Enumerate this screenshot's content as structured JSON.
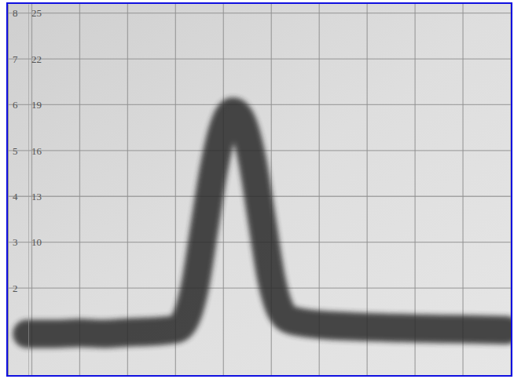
{
  "chart_data": {
    "type": "line",
    "x": [
      -0.1,
      0.5,
      1,
      1.5,
      2,
      2.5,
      3,
      3.2,
      3.4,
      3.6,
      3.8,
      4.0,
      4.2,
      4.4,
      4.6,
      4.8,
      5.0,
      5.2,
      5.4,
      6,
      7,
      8,
      9,
      9.9
    ],
    "values": [
      1.0,
      1.0,
      1.02,
      1.0,
      1.03,
      1.05,
      1.1,
      1.3,
      2.0,
      3.3,
      4.6,
      5.5,
      5.85,
      5.6,
      4.8,
      3.5,
      2.2,
      1.5,
      1.3,
      1.2,
      1.15,
      1.12,
      1.1,
      1.08
    ],
    "color": "#2b2b2b",
    "xlim": [
      -0.5,
      10
    ],
    "xticks": [
      0,
      1,
      2,
      3,
      4,
      5,
      6,
      7,
      8,
      9,
      10
    ],
    "ylim": [
      0.1,
      8.2
    ],
    "yticks": [
      2,
      3,
      4,
      5,
      6,
      7,
      8
    ],
    "y2lim": [
      1.3,
      25.6
    ],
    "y2ticks": [
      10,
      13,
      16,
      19,
      22,
      25
    ],
    "grid": true,
    "tick_labels": "y"
  }
}
